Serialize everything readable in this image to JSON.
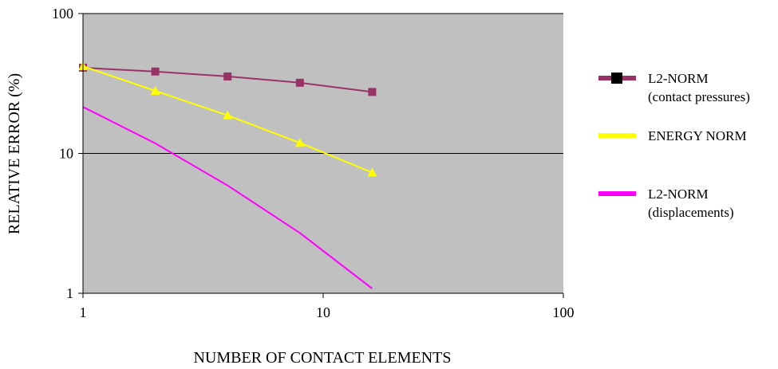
{
  "chart_data": {
    "type": "line",
    "xscale": "log",
    "yscale": "log",
    "xlabel": "NUMBER OF CONTACT ELEMENTS",
    "ylabel": "RELATIVE ERROR (%)",
    "xlim": [
      1,
      100
    ],
    "ylim": [
      1,
      100
    ],
    "xticks": [
      "1",
      "10",
      "100"
    ],
    "yticks": [
      "1",
      "10",
      "100"
    ],
    "grid": "horizontal major gridlines",
    "plot_background": "#c0c0c0",
    "legend_position": "right",
    "series": [
      {
        "name": "L2-NORM",
        "name_line2": "(contact pressures)",
        "color": "#993366",
        "marker": "square",
        "x": [
          1,
          2,
          4,
          8,
          16
        ],
        "y": [
          41,
          38.5,
          35.5,
          32,
          27.5
        ]
      },
      {
        "name": "ENERGY NORM",
        "name_line2": "",
        "color": "#ffff00",
        "marker": "triangle",
        "x": [
          1,
          2,
          4,
          8,
          16
        ],
        "y": [
          42,
          28,
          18.7,
          11.9,
          7.3
        ]
      },
      {
        "name": "L2-NORM",
        "name_line2": "(displacements)",
        "color": "#ff00ff",
        "marker": "none",
        "x": [
          1,
          2,
          4,
          8,
          16
        ],
        "y": [
          21.5,
          11.8,
          5.9,
          2.7,
          1.08
        ]
      }
    ]
  }
}
